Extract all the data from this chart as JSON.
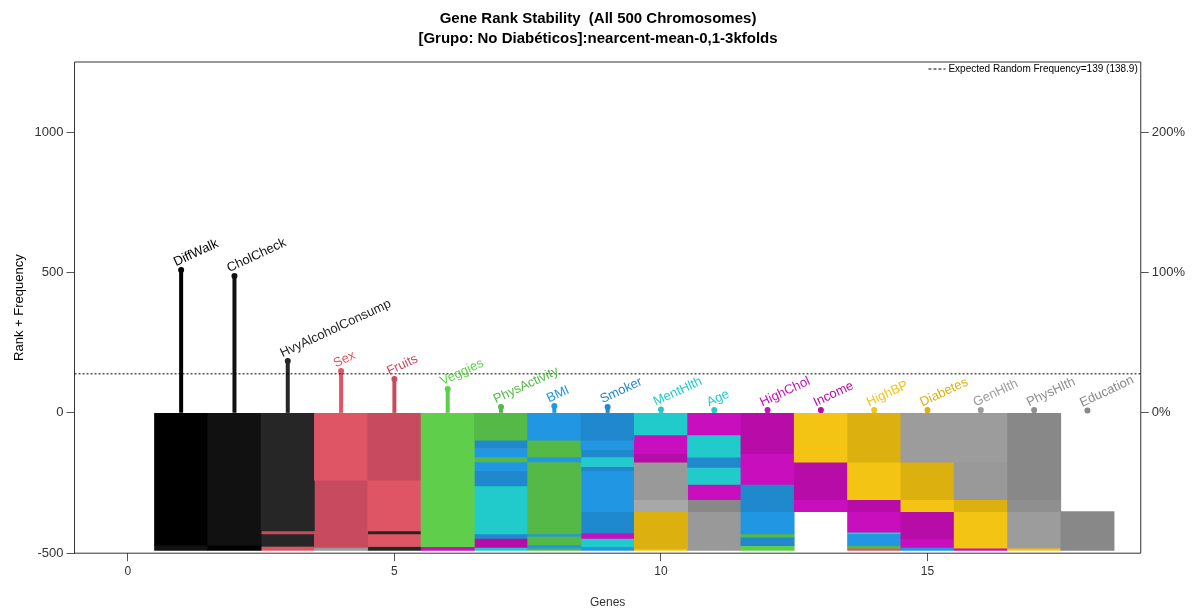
{
  "chart_data": {
    "type": "bar",
    "title": "Gene Rank Stability  (All 500 Chromosomes)",
    "subtitle": "[Grupo: No Diabéticos]:nearcent-mean-0,1-3kfolds",
    "xlabel": "Genes",
    "ylabel": "Rank + Frequency",
    "xlim": [
      -1,
      19
    ],
    "xticks": [
      0,
      5,
      10,
      15
    ],
    "ylim": [
      -500,
      1250
    ],
    "yticks": [
      -500,
      0,
      500,
      1000
    ],
    "y2lim": [
      -100,
      250
    ],
    "y2ticks": [
      {
        "value": 0,
        "label": "0%"
      },
      {
        "value": 100,
        "label": "100%"
      },
      {
        "value": 200,
        "label": "200%"
      }
    ],
    "ref_lines": [
      {
        "axis": "y",
        "value": 139,
        "label": "Expected Random Frequency=139 (138.9)",
        "line_style": "dotted"
      }
    ],
    "series": [
      {
        "type": "lollipop",
        "x": [
          1,
          2,
          3,
          4,
          5,
          6,
          7,
          8,
          9,
          10,
          11,
          12,
          13,
          14,
          15,
          16,
          17,
          18
        ],
        "values": [
          509,
          488,
          185,
          149,
          121,
          85,
          21,
          24,
          21,
          12,
          10,
          10,
          10,
          10,
          10,
          10,
          10,
          8
        ],
        "colors": [
          "#000000",
          "#111111",
          "#262626",
          "#e05565",
          "#c84a5e",
          "#5fcf4b",
          "#55b948",
          "#2196e3",
          "#2088cc",
          "#22cbcb",
          "#22cbcb",
          "#c90fbd",
          "#b80ca8",
          "#f3c414",
          "#dcb00f",
          "#9c9c9c",
          "#8f8f8f",
          "#888888"
        ]
      },
      {
        "x": [
          1,
          2,
          3,
          4,
          5,
          6,
          7,
          8,
          9,
          10,
          11,
          12,
          13,
          14,
          15,
          16,
          17,
          18
        ],
        "base": [
          -471,
          -471,
          -421,
          -240,
          -240,
          -477,
          -97,
          -97,
          -97,
          -79,
          -79,
          -145,
          -176,
          -176,
          -176,
          -176,
          -309,
          -490
        ],
        "values": [
          471,
          471,
          421,
          240,
          240,
          477,
          97,
          97,
          97,
          79,
          79,
          145,
          176,
          176,
          176,
          176,
          309,
          138
        ],
        "colors": [
          "#000000",
          "#111111",
          "#262626",
          "#e05565",
          "#c84a5e",
          "#5fcf4b",
          "#55b948",
          "#2196e3",
          "#2088cc",
          "#22cbcb",
          "#c90fbd",
          "#b80ca8",
          "#f3c414",
          "#dcb00f",
          "#9c9c9c",
          "#9c9c9c",
          "#888888",
          "#888888"
        ]
      },
      {
        "x": [
          1,
          2,
          3,
          4,
          5,
          6,
          7,
          8,
          9,
          10,
          11,
          12,
          13,
          14,
          15,
          16,
          17
        ],
        "base": [
          -490,
          -490,
          -431,
          -479,
          -421,
          -490,
          -127,
          -157,
          -131,
          -145,
          -158,
          -255,
          -309,
          -309,
          -309,
          -309,
          -352
        ],
        "values": [
          19,
          19,
          10,
          239,
          181,
          13,
          30,
          60,
          34,
          66,
          79,
          110,
          133,
          133,
          133,
          133,
          43
        ],
        "colors": [
          "#111111",
          "#000000",
          "#c84a5e",
          "#c84a5e",
          "#e05565",
          "#c90fbd",
          "#2088cc",
          "#55b948",
          "#2196e3",
          "#c90fbd",
          "#22cbcb",
          "#c90fbd",
          "#b80ca8",
          "#f3c414",
          "#dcb00f",
          "#999999",
          "#8f8f8f"
        ]
      },
      {
        "x": [
          3,
          4,
          5,
          7,
          8,
          9,
          10,
          11,
          12,
          13,
          14,
          15,
          16,
          17
        ],
        "base": [
          -476,
          -490,
          -431,
          -157,
          -175,
          -157,
          -176,
          -194,
          -352,
          -352,
          -352,
          -352,
          -352,
          -482
        ],
        "values": [
          45,
          11,
          10,
          30,
          18,
          26,
          31,
          36,
          97,
          43,
          43,
          43,
          43,
          130
        ],
        "colors": [
          "#262626",
          "#9c9c9c",
          "#262626",
          "#2196e3",
          "#2196e3",
          "#2088cc",
          "#b80ca8",
          "#2088cc",
          "#2088cc",
          "#c90fbd",
          "#b80ca8",
          "#f3c414",
          "#dcb00f",
          "#9c9c9c"
        ]
      },
      {
        "x": [
          3,
          5,
          7,
          8,
          9,
          10,
          11,
          12,
          14,
          15,
          16,
          17
        ],
        "base": [
          -490,
          -476,
          -175,
          -431,
          -191,
          -309,
          -255,
          -431,
          -425,
          -449,
          -482,
          -490
        ],
        "values": [
          14,
          45,
          18,
          256,
          34,
          133,
          61,
          79,
          73,
          97,
          130,
          8
        ],
        "colors": [
          "#e05565",
          "#e05565",
          "#55b948",
          "#55b948",
          "#22cbcb",
          "#999999",
          "#22cbcb",
          "#2196e3",
          "#c90fbd",
          "#b80ca8",
          "#f3c414",
          "#f3c414"
        ]
      },
      {
        "x": [
          5,
          7,
          8,
          9,
          10,
          11,
          12,
          14,
          15,
          16
        ],
        "base": [
          -490,
          -206,
          -439,
          -206,
          -352,
          -309,
          -443,
          -431,
          -479,
          -490
        ],
        "values": [
          14,
          31,
          8,
          15,
          43,
          54,
          12,
          6,
          30,
          8
        ],
        "colors": [
          "#262626",
          "#2196e3",
          "#2196e3",
          "#2088cc",
          "#a8a8a8",
          "#c90fbd",
          "#55b948",
          "#22cbcb",
          "#c90fbd",
          "#c90fbd"
        ]
      },
      {
        "x": [
          7,
          8,
          9,
          10,
          11,
          12,
          14,
          15
        ],
        "base": [
          -260,
          -470,
          -352,
          -485,
          -352,
          -473,
          -473,
          -490
        ],
        "values": [
          54,
          31,
          146,
          133,
          43,
          30,
          42,
          11
        ],
        "colors": [
          "#2088cc",
          "#55b948",
          "#2196e3",
          "#dcb00f",
          "#888888",
          "#2088cc",
          "#2196e3",
          "#2196e3"
        ]
      },
      {
        "x": [
          7,
          8,
          9,
          10,
          11,
          12,
          14
        ],
        "base": [
          -431,
          -482,
          -428,
          -490,
          -490,
          -490,
          -482
        ],
        "values": [
          171,
          12,
          76,
          5,
          138,
          17,
          9
        ],
        "colors": [
          "#22cbcb",
          "#2196e3",
          "#2088cc",
          "#f3c414",
          "#999999",
          "#5fcf4b",
          "#55b948"
        ]
      },
      {
        "x": [
          7,
          8,
          9,
          14
        ],
        "base": [
          -447,
          -490,
          -447,
          -490
        ],
        "values": [
          16,
          8,
          19,
          8
        ],
        "colors": [
          "#2088cc",
          "#55b948",
          "#c90fbd",
          "#e05565"
        ]
      },
      {
        "x": [
          7,
          9
        ],
        "base": [
          -479,
          -477
        ],
        "values": [
          32,
          30
        ],
        "colors": [
          "#b80ca8",
          "#22cbcb"
        ]
      },
      {
        "x": [
          7,
          9
        ],
        "base": [
          -490,
          -490
        ],
        "values": [
          11,
          13
        ],
        "colors": [
          "#22cbcb",
          "#2196e3"
        ]
      }
    ],
    "annotations": [
      {
        "text": "DiffWalk",
        "x": 1,
        "y": 509
      },
      {
        "text": "CholCheck",
        "x": 2,
        "y": 488
      },
      {
        "text": "HvyAlcoholConsump",
        "x": 3,
        "y": 185
      },
      {
        "text": "Sex",
        "x": 4,
        "y": 149
      },
      {
        "text": "Fruits",
        "x": 5,
        "y": 121
      },
      {
        "text": "Veggies",
        "x": 6,
        "y": 85
      },
      {
        "text": "PhysActivity",
        "x": 7,
        "y": 21
      },
      {
        "text": "BMI",
        "x": 8,
        "y": 24
      },
      {
        "text": "Smoker",
        "x": 9,
        "y": 21
      },
      {
        "text": "MentHlth",
        "x": 10,
        "y": 12
      },
      {
        "text": "Age",
        "x": 11,
        "y": 10
      },
      {
        "text": "HighChol",
        "x": 12,
        "y": 10
      },
      {
        "text": "Income",
        "x": 13,
        "y": 10
      },
      {
        "text": "HighBP",
        "x": 14,
        "y": 10
      },
      {
        "text": "Diabetes",
        "x": 15,
        "y": 10
      },
      {
        "text": "GenHlth",
        "x": 16,
        "y": 10
      },
      {
        "text": "PhysHlth",
        "x": 17,
        "y": 10
      },
      {
        "text": "Education",
        "x": 18,
        "y": 8
      }
    ]
  }
}
